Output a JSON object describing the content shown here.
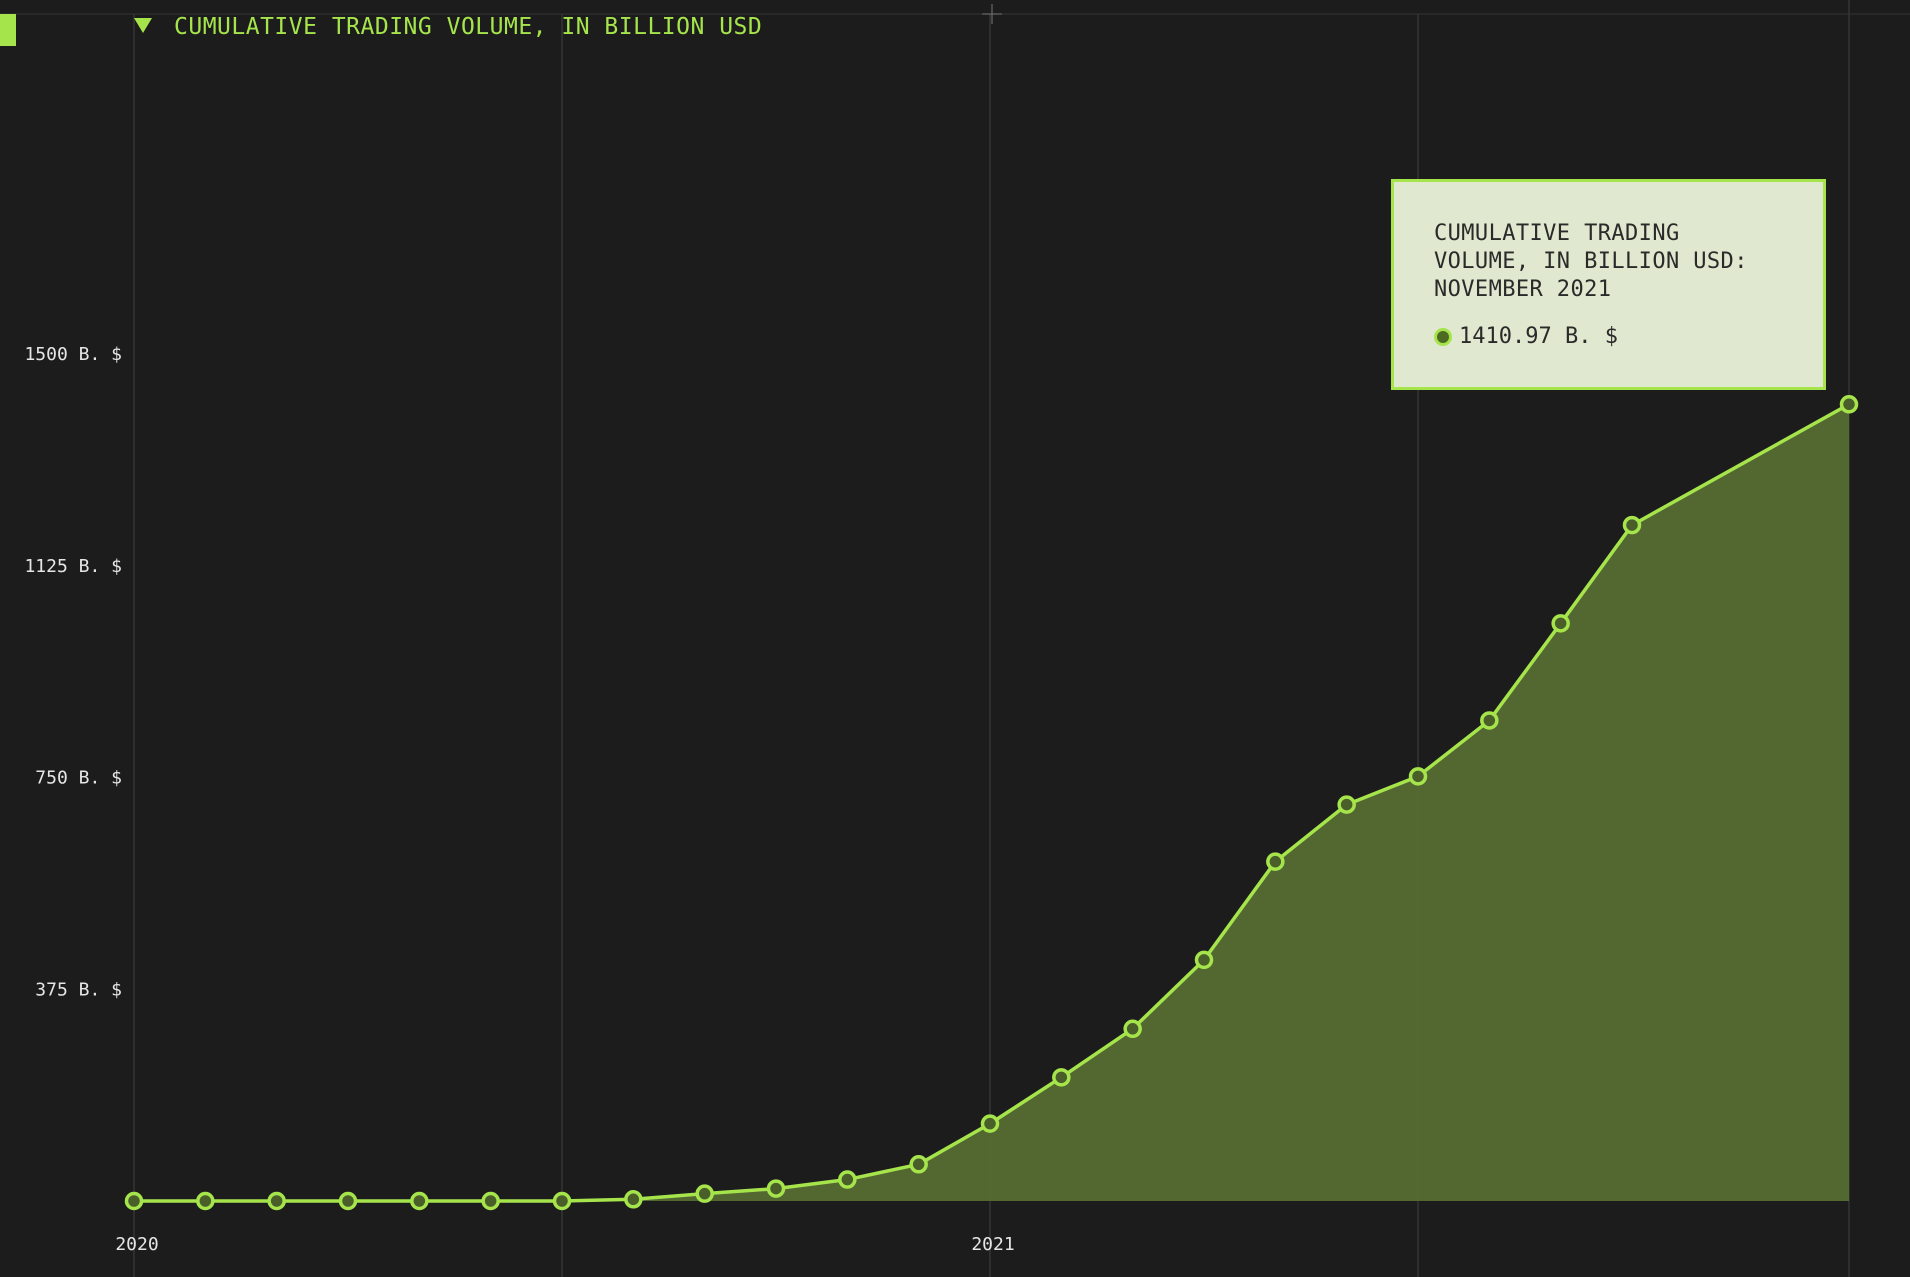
{
  "legend": {
    "title": "CUMULATIVE TRADING VOLUME, IN BILLION USD"
  },
  "tooltip": {
    "title_line1": "CUMULATIVE TRADING",
    "title_line2": "VOLUME, IN BILLION USD:",
    "title_line3": "NOVEMBER 2021",
    "value": "1410.97 B. $"
  },
  "colors": {
    "background": "#1c1c1c",
    "accent": "#a6e44c",
    "area": "#566d31",
    "grid": "#3a3a3a"
  },
  "chart_data": {
    "type": "area",
    "title": "CUMULATIVE TRADING VOLUME, IN BILLION USD",
    "x": [
      "2020-01",
      "2020-02",
      "2020-03",
      "2020-04",
      "2020-05",
      "2020-06",
      "2020-07",
      "2020-08",
      "2020-09",
      "2020-10",
      "2020-11",
      "2020-12",
      "2021-01",
      "2021-02",
      "2021-03",
      "2021-04",
      "2021-05",
      "2021-06",
      "2021-07",
      "2021-08",
      "2021-09",
      "2021-10",
      "2021-11"
    ],
    "series": [
      {
        "name": "CUMULATIVE TRADING VOLUME, IN BILLION USD",
        "values": [
          0,
          0,
          0,
          0,
          0,
          0,
          0,
          3,
          13,
          22,
          38,
          65,
          137,
          219,
          305,
          427,
          601,
          702,
          752,
          851,
          1023,
          1197,
          1410.97
        ]
      }
    ],
    "xticks": [
      {
        "label": "2020",
        "x": "2020-01"
      },
      {
        "label": "2021",
        "x": "2021-01"
      }
    ],
    "yticks": [
      375,
      750,
      1125,
      1500
    ],
    "ytick_labels": [
      "375 B. $",
      "750 B. $",
      "1125 B. $",
      "1500 B. $"
    ],
    "ylim": [
      0,
      1500
    ],
    "grid": "vertical",
    "legend": "top-left"
  }
}
